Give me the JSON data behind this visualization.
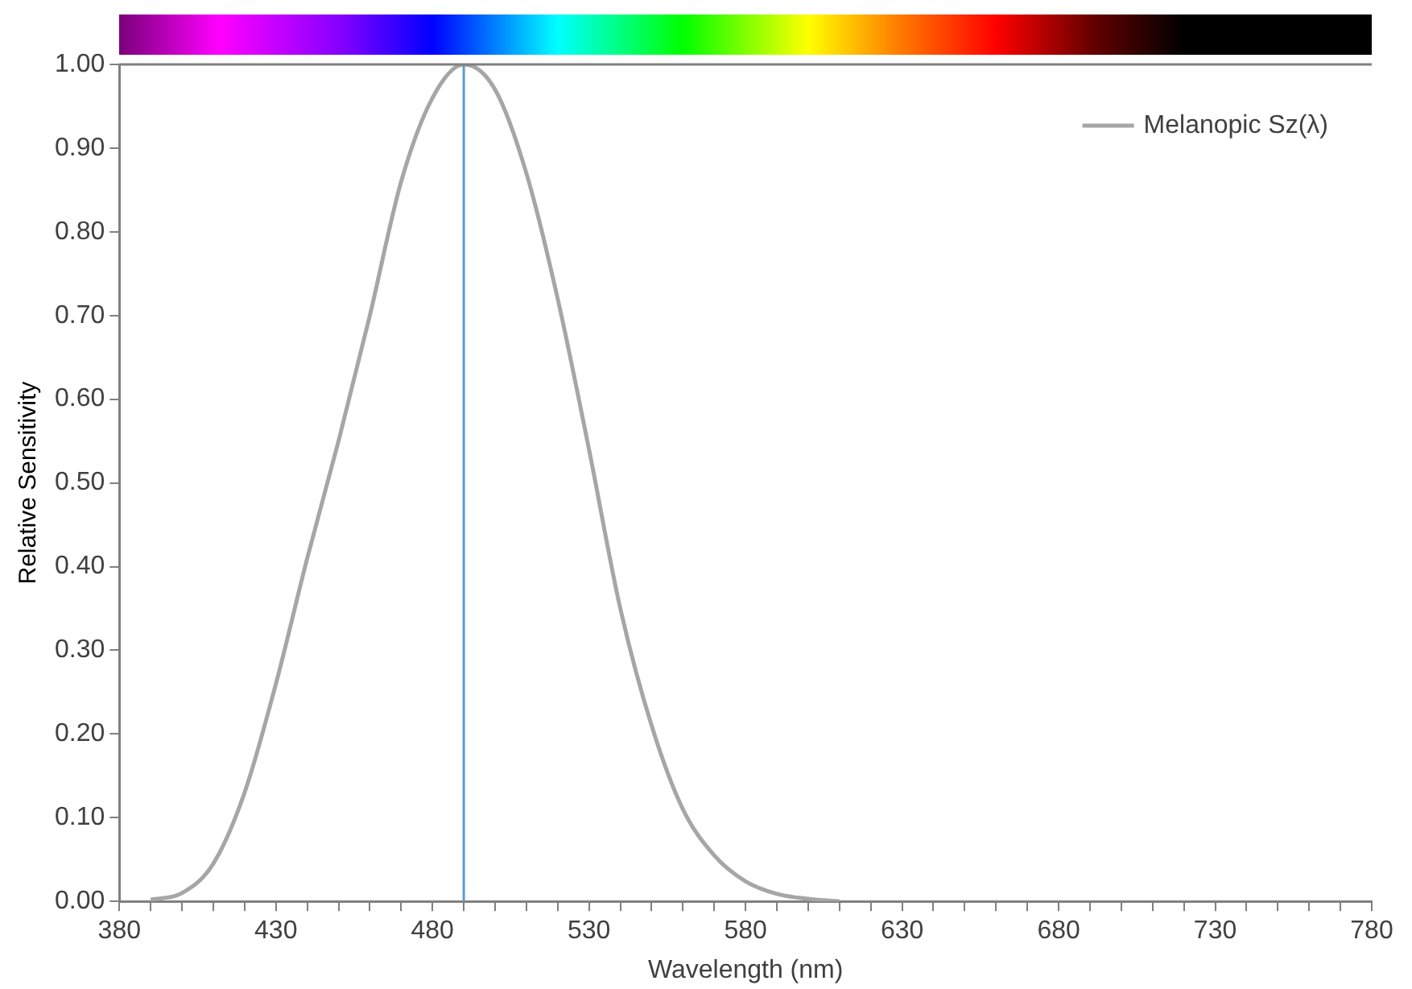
{
  "chart_data": {
    "type": "line",
    "xlabel": "Wavelength (nm)",
    "ylabel": "Relative Sensitivity",
    "x": [
      390,
      400,
      410,
      420,
      430,
      440,
      450,
      460,
      470,
      480,
      490,
      500,
      510,
      520,
      530,
      540,
      550,
      560,
      570,
      580,
      590,
      600,
      610
    ],
    "series": [
      {
        "name": "Melanopic Sz(λ)",
        "color": "#a6a6a6",
        "values": [
          0.002,
          0.01,
          0.045,
          0.13,
          0.26,
          0.41,
          0.55,
          0.7,
          0.86,
          0.96,
          1.0,
          0.97,
          0.87,
          0.72,
          0.54,
          0.35,
          0.21,
          0.11,
          0.055,
          0.024,
          0.009,
          0.003,
          0.0
        ]
      }
    ],
    "xlim": [
      380,
      780
    ],
    "xticks": [
      380,
      {
        "value": 390,
        "label": null
      },
      {
        "value": 400,
        "label": null
      },
      {
        "value": 410,
        "label": null
      },
      {
        "value": 420,
        "label": null
      },
      430,
      {
        "value": 440,
        "label": null
      },
      {
        "value": 450,
        "label": null
      },
      {
        "value": 460,
        "label": null
      },
      {
        "value": 470,
        "label": null
      },
      480,
      {
        "value": 490,
        "label": null
      },
      {
        "value": 500,
        "label": null
      },
      {
        "value": 510,
        "label": null
      },
      {
        "value": 520,
        "label": null
      },
      530,
      {
        "value": 540,
        "label": null
      },
      {
        "value": 550,
        "label": null
      },
      {
        "value": 560,
        "label": null
      },
      {
        "value": 570,
        "label": null
      },
      580,
      {
        "value": 590,
        "label": null
      },
      {
        "value": 600,
        "label": null
      },
      {
        "value": 610,
        "label": null
      },
      {
        "value": 620,
        "label": null
      },
      630,
      {
        "value": 640,
        "label": null
      },
      {
        "value": 650,
        "label": null
      },
      {
        "value": 660,
        "label": null
      },
      {
        "value": 670,
        "label": null
      },
      680,
      {
        "value": 690,
        "label": null
      },
      {
        "value": 700,
        "label": null
      },
      {
        "value": 710,
        "label": null
      },
      {
        "value": 720,
        "label": null
      },
      730,
      {
        "value": 740,
        "label": null
      },
      {
        "value": 750,
        "label": null
      },
      {
        "value": 760,
        "label": null
      },
      {
        "value": 770,
        "label": null
      },
      780
    ],
    "ylim": [
      0,
      1
    ],
    "yticks": [
      {
        "value": 0,
        "label": "0.00"
      },
      {
        "value": 0.1,
        "label": "0.10"
      },
      {
        "value": 0.2,
        "label": "0.20"
      },
      {
        "value": 0.3,
        "label": "0.30"
      },
      {
        "value": 0.4,
        "label": "0.40"
      },
      {
        "value": 0.5,
        "label": "0.50"
      },
      {
        "value": 0.6,
        "label": "0.60"
      },
      {
        "value": 0.7,
        "label": "0.70"
      },
      {
        "value": 0.8,
        "label": "0.80"
      },
      {
        "value": 0.9,
        "label": "0.90"
      },
      {
        "value": 1,
        "label": "1.00"
      }
    ],
    "ref_lines": [
      {
        "axis": "x",
        "value": 490,
        "color": "#5b9bd5"
      }
    ],
    "grid": false,
    "legend": "top right",
    "marker": "none",
    "line_style": "solid"
  }
}
